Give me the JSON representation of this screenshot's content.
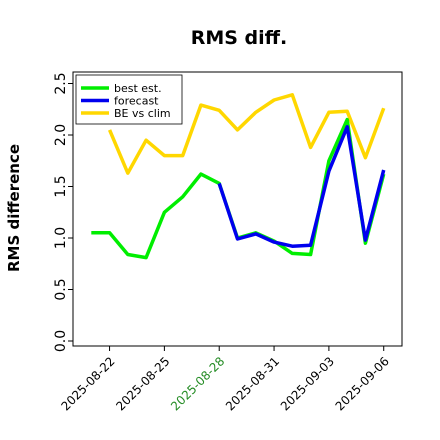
{
  "chart_data": {
    "type": "line",
    "title": "RMS diff.",
    "ylabel": "RMS difference",
    "xlabel": "",
    "ylim": [
      0,
      2.5
    ],
    "yticks": [
      "0.0",
      "0.5",
      "1.0",
      "1.5",
      "2.0",
      "2.5"
    ],
    "xlim": [
      "2025-08-20",
      "2025-09-07"
    ],
    "xticks": [
      {
        "label": "2025-08-22",
        "date": "2025-08-22",
        "color": "#000000"
      },
      {
        "label": "2025-08-25",
        "date": "2025-08-25",
        "color": "#000000"
      },
      {
        "label": "2025-08-28",
        "date": "2025-08-28",
        "color": "#228b22"
      },
      {
        "label": "2025-08-31",
        "date": "2025-08-31",
        "color": "#000000"
      },
      {
        "label": "2025-09-03",
        "date": "2025-09-03",
        "color": "#000000"
      },
      {
        "label": "2025-09-06",
        "date": "2025-09-06",
        "color": "#000000"
      }
    ],
    "legend_position": "top-left",
    "series": [
      {
        "name": "best est.",
        "color": "#00ee00",
        "points": [
          [
            "2025-08-21",
            1.05
          ],
          [
            "2025-08-22",
            1.05
          ],
          [
            "2025-08-23",
            0.84
          ],
          [
            "2025-08-24",
            0.81
          ],
          [
            "2025-08-25",
            1.25
          ],
          [
            "2025-08-26",
            1.4
          ],
          [
            "2025-08-27",
            1.62
          ],
          [
            "2025-08-28",
            1.53
          ],
          [
            "2025-08-29",
            1.0
          ],
          [
            "2025-08-30",
            1.05
          ],
          [
            "2025-08-31",
            0.97
          ],
          [
            "2025-09-01",
            0.85
          ],
          [
            "2025-09-02",
            0.84
          ],
          [
            "2025-09-03",
            1.75
          ],
          [
            "2025-09-04",
            2.15
          ],
          [
            "2025-09-05",
            0.95
          ],
          [
            "2025-09-06",
            1.62
          ]
        ]
      },
      {
        "name": "forecast",
        "color": "#0000ee",
        "points": [
          [
            "2025-08-28",
            1.53
          ],
          [
            "2025-08-29",
            0.99
          ],
          [
            "2025-08-30",
            1.04
          ],
          [
            "2025-08-31",
            0.96
          ],
          [
            "2025-09-01",
            0.92
          ],
          [
            "2025-09-02",
            0.93
          ],
          [
            "2025-09-03",
            1.65
          ],
          [
            "2025-09-04",
            2.08
          ],
          [
            "2025-09-05",
            0.98
          ],
          [
            "2025-09-06",
            1.66
          ]
        ]
      },
      {
        "name": "BE vs clim",
        "color": "#ffd700",
        "points": [
          [
            "2025-08-22",
            2.05
          ],
          [
            "2025-08-23",
            1.63
          ],
          [
            "2025-08-24",
            1.95
          ],
          [
            "2025-08-25",
            1.8
          ],
          [
            "2025-08-26",
            1.8
          ],
          [
            "2025-08-27",
            2.29
          ],
          [
            "2025-08-28",
            2.24
          ],
          [
            "2025-08-29",
            2.05
          ],
          [
            "2025-08-30",
            2.22
          ],
          [
            "2025-08-31",
            2.34
          ],
          [
            "2025-09-01",
            2.39
          ],
          [
            "2025-09-02",
            1.88
          ],
          [
            "2025-09-03",
            2.22
          ],
          [
            "2025-09-04",
            2.23
          ],
          [
            "2025-09-05",
            1.78
          ],
          [
            "2025-09-06",
            2.26
          ]
        ]
      }
    ]
  }
}
